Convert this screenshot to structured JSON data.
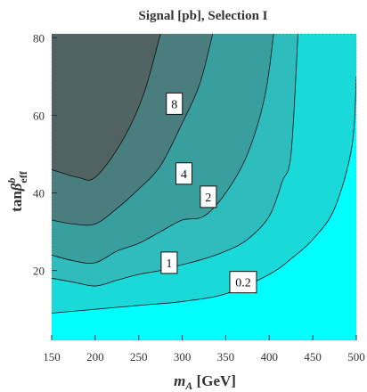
{
  "chart_data": {
    "type": "contour",
    "title": "Signal [pb], Selection I",
    "xlabel": {
      "main": "m",
      "sub": "A",
      "unit": " [GeV]"
    },
    "ylabel": {
      "prefix": "tan",
      "greek": "β",
      "sup": "b",
      "sub": "eff"
    },
    "xlim": [
      150,
      500
    ],
    "ylim": [
      2,
      81
    ],
    "x_ticks": [
      150,
      200,
      250,
      300,
      350,
      400,
      450,
      500
    ],
    "y_ticks": [
      20,
      40,
      60,
      80
    ],
    "grid": false,
    "colors": {
      "below_0.2": "#00ffff",
      "0.2_to_1": "#1ad9d9",
      "1_to_2": "#2ebcbc",
      "2_to_4": "#389e9e",
      "4_to_8": "#4a7d7d",
      "above_8": "#506262",
      "contour_line": "#111111"
    },
    "contours": [
      {
        "level": "8",
        "label_at": [
          291,
          63
        ],
        "points": [
          [
            150,
            46
          ],
          [
            180,
            44
          ],
          [
            200,
            44
          ],
          [
            230,
            53
          ],
          [
            255,
            65
          ],
          [
            275,
            81
          ]
        ]
      },
      {
        "level": "4",
        "label_at": [
          302,
          45
        ],
        "points": [
          [
            150,
            33
          ],
          [
            175,
            32
          ],
          [
            200,
            32
          ],
          [
            225,
            36
          ],
          [
            250,
            41
          ],
          [
            275,
            47
          ],
          [
            300,
            58
          ],
          [
            320,
            68
          ],
          [
            335,
            81
          ]
        ]
      },
      {
        "level": "2",
        "label_at": [
          330,
          39
        ],
        "points": [
          [
            150,
            24
          ],
          [
            175,
            22.5
          ],
          [
            200,
            22
          ],
          [
            225,
            25
          ],
          [
            250,
            27
          ],
          [
            275,
            30
          ],
          [
            300,
            33
          ],
          [
            325,
            34
          ],
          [
            350,
            40
          ],
          [
            375,
            50
          ],
          [
            395,
            65
          ],
          [
            405,
            81
          ]
        ]
      },
      {
        "level": "1",
        "label_at": [
          285,
          22
        ],
        "points": [
          [
            150,
            18
          ],
          [
            175,
            17
          ],
          [
            200,
            16
          ],
          [
            225,
            17.5
          ],
          [
            250,
            19
          ],
          [
            275,
            20
          ],
          [
            300,
            21.5
          ],
          [
            325,
            23
          ],
          [
            350,
            25
          ],
          [
            375,
            28
          ],
          [
            400,
            34
          ],
          [
            415,
            43
          ],
          [
            425,
            50
          ],
          [
            433,
            81
          ]
        ]
      },
      {
        "level": "0.2",
        "label_at": [
          370,
          17
        ],
        "points": [
          [
            150,
            9
          ],
          [
            200,
            10
          ],
          [
            250,
            11
          ],
          [
            300,
            12
          ],
          [
            350,
            14
          ],
          [
            400,
            19
          ],
          [
            425,
            23
          ],
          [
            450,
            28
          ],
          [
            475,
            36
          ],
          [
            495,
            52
          ],
          [
            500,
            70
          ]
        ]
      }
    ]
  }
}
